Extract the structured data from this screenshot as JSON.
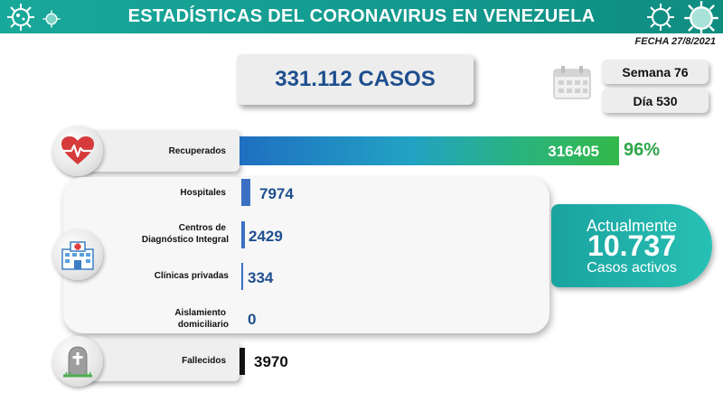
{
  "header": {
    "title": "ESTADÍSTICAS DEL CORONAVIRUS EN VENEZUELA",
    "date": "FECHA 27/8/2021"
  },
  "summary": {
    "total_cases": "331.112 CASOS",
    "week": "Semana 76",
    "day": "Día 530"
  },
  "recuperados": {
    "label": "Recuperados",
    "value": "316405",
    "percent": "96%"
  },
  "hospitalization": {
    "hospitales": {
      "label": "Hospitales",
      "value": "7974"
    },
    "cdi": {
      "label_line1": "Centros de",
      "label_line2": "Diagnóstico Integral",
      "value": "2429"
    },
    "clinicas": {
      "label": "Clínicas privadas",
      "value": "334"
    },
    "aislamiento": {
      "label_line1": "Aislamiento",
      "label_line2": "domiciliario",
      "value": "0"
    }
  },
  "active": {
    "label": "Actualmente",
    "value": "10.737",
    "sub": "Casos activos"
  },
  "fallecidos": {
    "label": "Fallecidos",
    "value": "3970"
  },
  "colors": {
    "header": "#139a8f",
    "accent_blue": "#1e4f8f",
    "percent_green": "#2ea54a",
    "active_teal": "#1aa3a0"
  },
  "icons": [
    "virus-icon",
    "heart-pulse-icon",
    "calendar-icon",
    "hospital-icon",
    "tombstone-icon"
  ]
}
